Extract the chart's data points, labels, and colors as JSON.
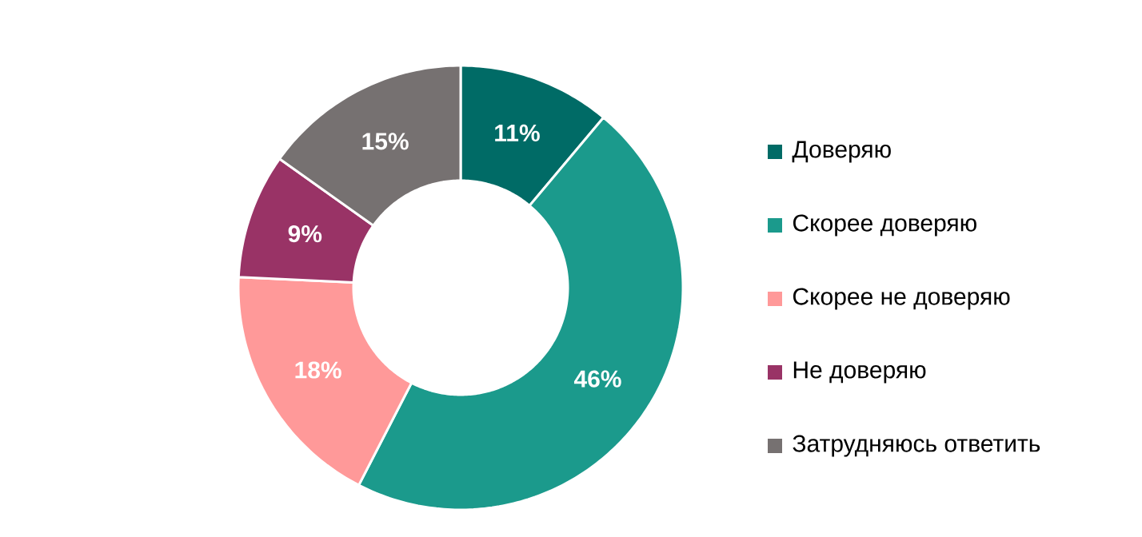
{
  "chart_data": {
    "type": "donut",
    "categories": [
      "Доверяю",
      "Скорее доверяю",
      "Скорее не доверяю",
      "Не доверяю",
      "Затрудняюсь ответить"
    ],
    "values": [
      11,
      46,
      18,
      9,
      15
    ],
    "value_labels": [
      "11%",
      "46%",
      "18%",
      "9%",
      "15%"
    ],
    "colors": [
      "#006b66",
      "#1b9a8c",
      "#ff9999",
      "#993366",
      "#767171"
    ],
    "legend": "right"
  }
}
